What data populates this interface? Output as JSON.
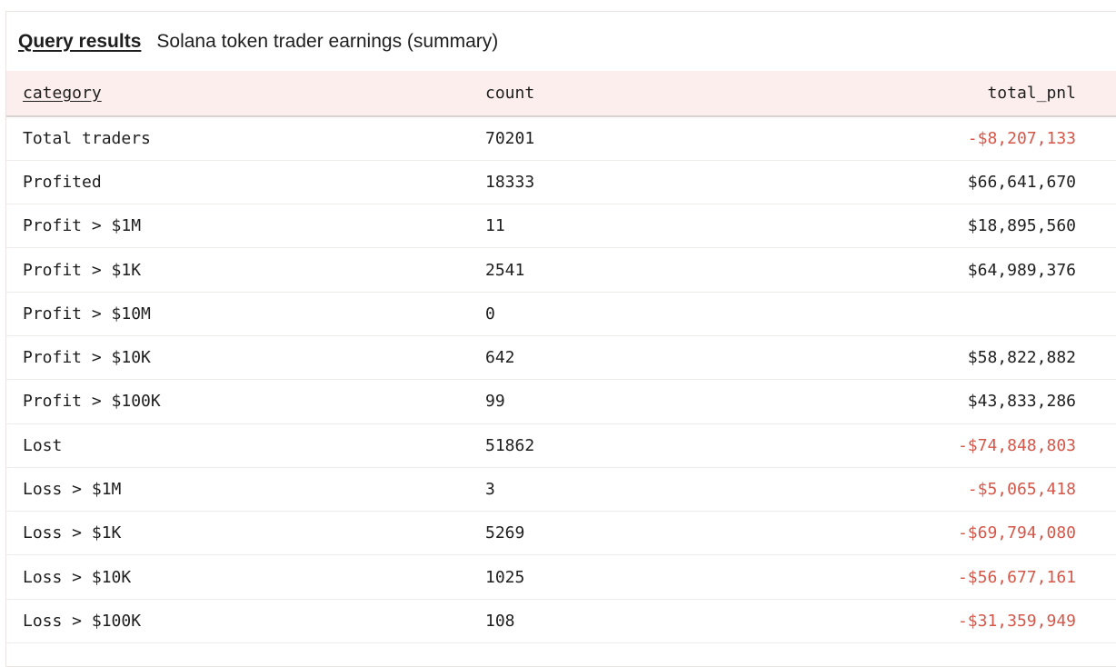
{
  "header": {
    "link": "Query results",
    "title": "Solana token trader earnings (summary)"
  },
  "colors": {
    "negative": "#d4574a",
    "header_bg": "#fbeeec"
  },
  "table": {
    "columns": [
      "category",
      "count",
      "total_pnl"
    ],
    "rows": [
      {
        "category": "Total traders",
        "count": "70201",
        "total_pnl": "-$8,207,133",
        "negative": true
      },
      {
        "category": "Profited",
        "count": "18333",
        "total_pnl": "$66,641,670",
        "negative": false
      },
      {
        "category": "Profit > $1M",
        "count": "11",
        "total_pnl": "$18,895,560",
        "negative": false
      },
      {
        "category": "Profit > $1K",
        "count": "2541",
        "total_pnl": "$64,989,376",
        "negative": false
      },
      {
        "category": "Profit > $10M",
        "count": "0",
        "total_pnl": "",
        "negative": false
      },
      {
        "category": "Profit > $10K",
        "count": "642",
        "total_pnl": "$58,822,882",
        "negative": false
      },
      {
        "category": "Profit > $100K",
        "count": "99",
        "total_pnl": "$43,833,286",
        "negative": false
      },
      {
        "category": "Lost",
        "count": "51862",
        "total_pnl": "-$74,848,803",
        "negative": true
      },
      {
        "category": "Loss > $1M",
        "count": "3",
        "total_pnl": "-$5,065,418",
        "negative": true
      },
      {
        "category": "Loss > $1K",
        "count": "5269",
        "total_pnl": "-$69,794,080",
        "negative": true
      },
      {
        "category": "Loss > $10K",
        "count": "1025",
        "total_pnl": "-$56,677,161",
        "negative": true
      },
      {
        "category": "Loss > $100K",
        "count": "108",
        "total_pnl": "-$31,359,949",
        "negative": true
      }
    ]
  }
}
